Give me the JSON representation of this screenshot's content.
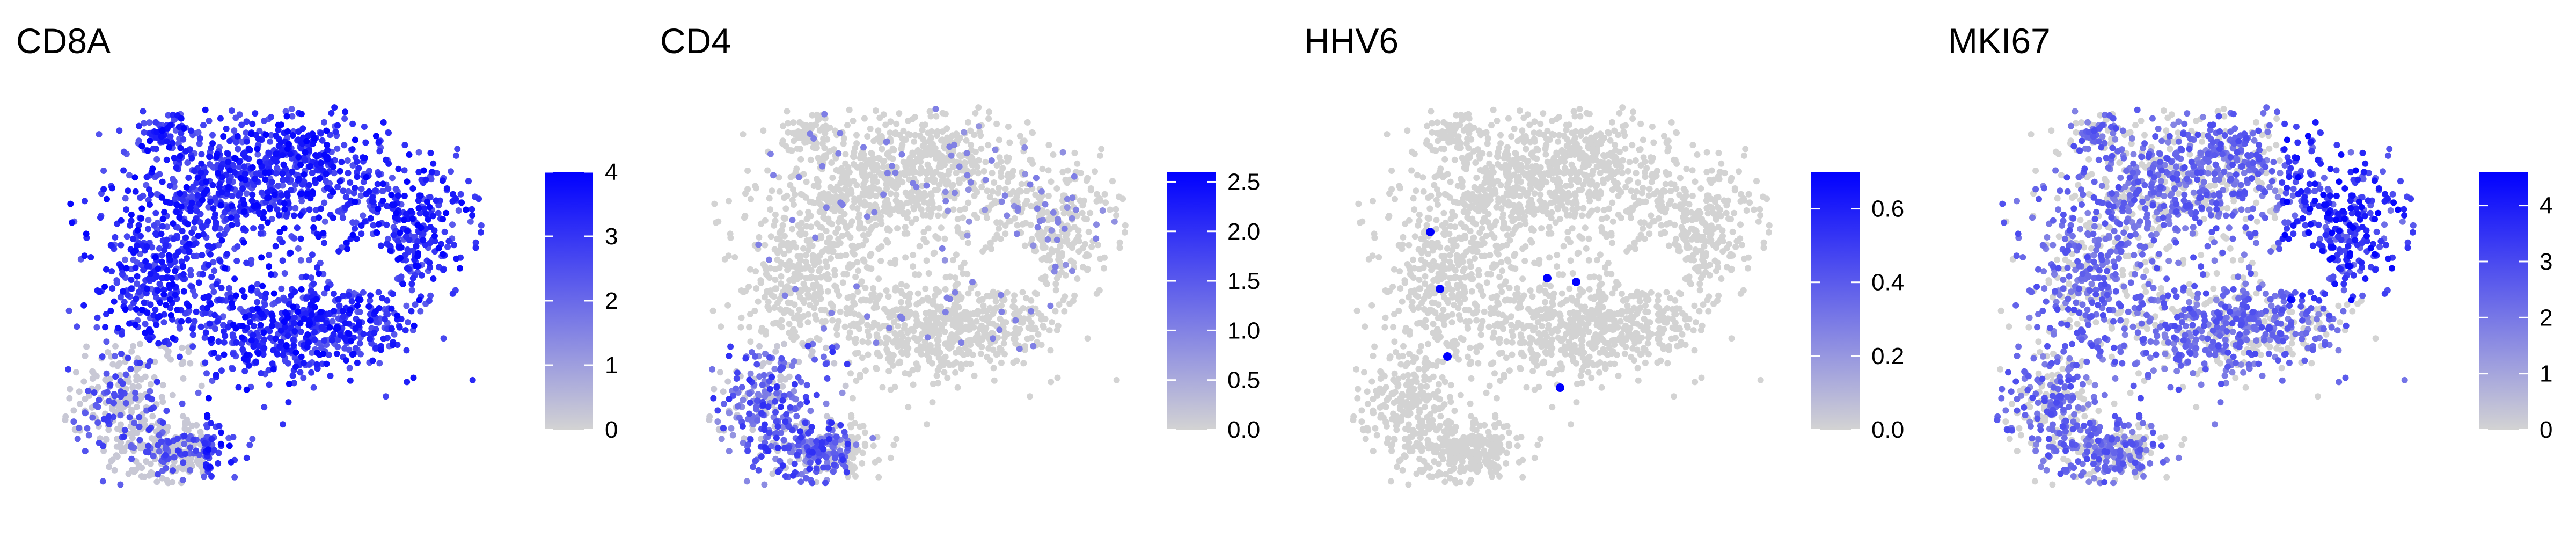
{
  "colors": {
    "low": "#d3d3d3",
    "high": "#0000ff",
    "background": "#ffffff"
  },
  "chart_data": [
    {
      "type": "scatter",
      "title": "CD8A",
      "xlabel": "",
      "ylabel": "",
      "legend": {
        "min": 0,
        "max": 4,
        "ticks": [
          0,
          1,
          2,
          3,
          4
        ],
        "tick_labels": [
          "0",
          "1",
          "2",
          "3",
          "4"
        ]
      },
      "expression_pattern": "high across most of the upper and central cluster, low in the bottom-left lobe"
    },
    {
      "type": "scatter",
      "title": "CD4",
      "xlabel": "",
      "ylabel": "",
      "legend": {
        "min": 0,
        "max": 2.6,
        "ticks": [
          0,
          0.5,
          1,
          1.5,
          2,
          2.5
        ],
        "tick_labels": [
          "0.0",
          "0.5",
          "1.0",
          "1.5",
          "2.0",
          "2.5"
        ]
      },
      "expression_pattern": "mostly low; elevated in the bottom-left lobe"
    },
    {
      "type": "scatter",
      "title": "HHV6",
      "xlabel": "",
      "ylabel": "",
      "legend": {
        "min": 0,
        "max": 0.7,
        "ticks": [
          0,
          0.2,
          0.4,
          0.6
        ],
        "tick_labels": [
          "0.0",
          "0.2",
          "0.4",
          "0.6"
        ]
      },
      "expression_pattern": "nearly all low; six isolated high cells"
    },
    {
      "type": "scatter",
      "title": "MKI67",
      "xlabel": "",
      "ylabel": "",
      "legend": {
        "min": 0,
        "max": 4.6,
        "ticks": [
          0,
          1,
          2,
          3,
          4
        ],
        "tick_labels": [
          "0",
          "1",
          "2",
          "3",
          "4"
        ]
      },
      "expression_pattern": "moderate throughout; highest in the right lobe"
    }
  ]
}
